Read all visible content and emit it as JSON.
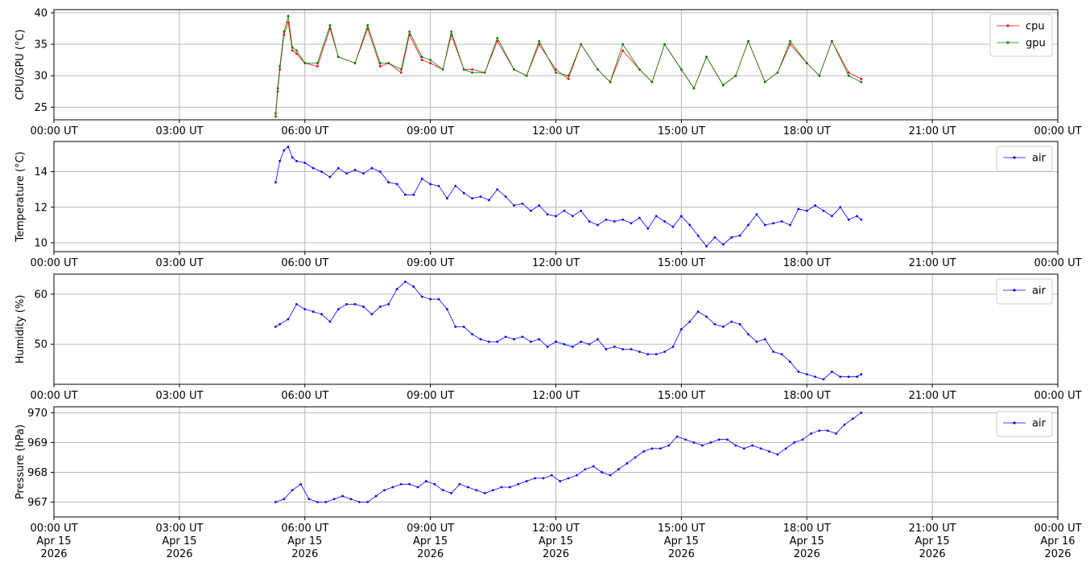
{
  "chart_data": [
    {
      "type": "line",
      "ylabel": "CPU/GPU (°C)",
      "xlim": [
        "00:00 UT",
        "00:00 UT"
      ],
      "ylim": [
        23,
        40.5
      ],
      "yticks": [
        "25",
        "30",
        "35",
        "40"
      ],
      "xticks": [
        "00:00 UT",
        "03:00 UT",
        "06:00 UT",
        "09:00 UT",
        "12:00 UT",
        "15:00 UT",
        "18:00 UT",
        "21:00 UT",
        "00:00 UT"
      ],
      "grid": true,
      "legend_position": "upper right",
      "series": [
        {
          "name": "cpu",
          "color": "#ff0000",
          "x_hours": [
            5.3,
            5.35,
            5.4,
            5.5,
            5.6,
            5.7,
            5.8,
            6.0,
            6.3,
            6.6,
            6.8,
            7.2,
            7.5,
            7.8,
            8.0,
            8.3,
            8.5,
            8.8,
            9.0,
            9.3,
            9.5,
            9.8,
            10.0,
            10.3,
            10.6,
            11.0,
            11.3,
            11.6,
            12.0,
            12.3,
            12.6,
            13.0,
            13.3,
            13.6,
            14.0,
            14.3,
            14.6,
            15.0,
            15.3,
            15.6,
            16.0,
            16.3,
            16.6,
            17.0,
            17.3,
            17.6,
            18.0,
            18.3,
            18.6,
            19.0,
            19.3
          ],
          "values": [
            23.5,
            27.5,
            31,
            36.5,
            38.5,
            34,
            33.5,
            32,
            31.5,
            37.5,
            33,
            32,
            37.5,
            31.5,
            32,
            30.5,
            36.5,
            32.5,
            32,
            31,
            36.5,
            31,
            31,
            30.5,
            35.5,
            31,
            30,
            35,
            31,
            29.5,
            35,
            31,
            29,
            34,
            31,
            29,
            35,
            31,
            28,
            33,
            28.5,
            30,
            35.5,
            29,
            30.5,
            35,
            32,
            30,
            35.5,
            30.5,
            29.5
          ]
        },
        {
          "name": "gpu",
          "color": "#008000",
          "x_hours": [
            5.3,
            5.35,
            5.4,
            5.5,
            5.6,
            5.7,
            5.8,
            6.0,
            6.3,
            6.6,
            6.8,
            7.2,
            7.5,
            7.8,
            8.0,
            8.3,
            8.5,
            8.8,
            9.0,
            9.3,
            9.5,
            9.8,
            10.0,
            10.3,
            10.6,
            11.0,
            11.3,
            11.6,
            12.0,
            12.3,
            12.6,
            13.0,
            13.3,
            13.6,
            14.0,
            14.3,
            14.6,
            15.0,
            15.3,
            15.6,
            16.0,
            16.3,
            16.6,
            17.0,
            17.3,
            17.6,
            18.0,
            18.3,
            18.6,
            19.0,
            19.3
          ],
          "values": [
            24,
            28,
            31.5,
            37,
            39.5,
            34.5,
            34,
            32,
            32,
            38,
            33,
            32,
            38,
            32,
            32,
            31,
            37,
            33,
            32.5,
            31,
            37,
            31,
            30.5,
            30.5,
            36,
            31,
            30,
            35.5,
            30.5,
            30,
            35,
            31,
            29,
            35,
            31,
            29,
            35,
            31,
            28,
            33,
            28.5,
            30,
            35.5,
            29,
            30.5,
            35.5,
            32,
            30,
            35.5,
            30,
            29
          ]
        }
      ]
    },
    {
      "type": "line",
      "ylabel": "Temperature (°C)",
      "xlim": [
        "00:00 UT",
        "00:00 UT"
      ],
      "ylim": [
        9.5,
        15.7
      ],
      "yticks": [
        "10",
        "12",
        "14"
      ],
      "xticks": [
        "00:00 UT",
        "03:00 UT",
        "06:00 UT",
        "09:00 UT",
        "12:00 UT",
        "15:00 UT",
        "18:00 UT",
        "21:00 UT",
        "00:00 UT"
      ],
      "grid": true,
      "legend_position": "upper right",
      "series": [
        {
          "name": "air",
          "color": "#0000ff",
          "x_hours": [
            5.3,
            5.4,
            5.5,
            5.6,
            5.7,
            5.8,
            6.0,
            6.2,
            6.4,
            6.6,
            6.8,
            7.0,
            7.2,
            7.4,
            7.6,
            7.8,
            8.0,
            8.2,
            8.4,
            8.6,
            8.8,
            9.0,
            9.2,
            9.4,
            9.6,
            9.8,
            10.0,
            10.2,
            10.4,
            10.6,
            10.8,
            11.0,
            11.2,
            11.4,
            11.6,
            11.8,
            12.0,
            12.2,
            12.4,
            12.6,
            12.8,
            13.0,
            13.2,
            13.4,
            13.6,
            13.8,
            14.0,
            14.2,
            14.4,
            14.6,
            14.8,
            15.0,
            15.2,
            15.4,
            15.6,
            15.8,
            16.0,
            16.2,
            16.4,
            16.6,
            16.8,
            17.0,
            17.2,
            17.4,
            17.6,
            17.8,
            18.0,
            18.2,
            18.4,
            18.6,
            18.8,
            19.0,
            19.2,
            19.3
          ],
          "values": [
            13.4,
            14.6,
            15.2,
            15.4,
            14.8,
            14.6,
            14.5,
            14.2,
            14.0,
            13.7,
            14.2,
            13.9,
            14.1,
            13.9,
            14.2,
            14.0,
            13.4,
            13.3,
            12.7,
            12.7,
            13.6,
            13.3,
            13.2,
            12.5,
            13.2,
            12.8,
            12.5,
            12.6,
            12.4,
            13.0,
            12.6,
            12.1,
            12.2,
            11.8,
            12.1,
            11.6,
            11.5,
            11.8,
            11.5,
            11.8,
            11.2,
            11.0,
            11.3,
            11.2,
            11.3,
            11.1,
            11.4,
            10.8,
            11.5,
            11.2,
            10.9,
            11.5,
            11.0,
            10.4,
            9.8,
            10.3,
            9.9,
            10.3,
            10.4,
            11.0,
            11.6,
            11.0,
            11.1,
            11.2,
            11.0,
            11.9,
            11.8,
            12.1,
            11.8,
            11.5,
            12.0,
            11.3,
            11.5,
            11.3
          ]
        }
      ]
    },
    {
      "type": "line",
      "ylabel": "Humidity (%)",
      "xlim": [
        "00:00 UT",
        "00:00 UT"
      ],
      "ylim": [
        42,
        64
      ],
      "yticks": [
        "50",
        "60"
      ],
      "xticks": [
        "00:00 UT",
        "03:00 UT",
        "06:00 UT",
        "09:00 UT",
        "12:00 UT",
        "15:00 UT",
        "18:00 UT",
        "21:00 UT",
        "00:00 UT"
      ],
      "grid": true,
      "legend_position": "upper right",
      "series": [
        {
          "name": "air",
          "color": "#0000ff",
          "x_hours": [
            5.3,
            5.4,
            5.6,
            5.8,
            6.0,
            6.2,
            6.4,
            6.6,
            6.8,
            7.0,
            7.2,
            7.4,
            7.6,
            7.8,
            8.0,
            8.2,
            8.4,
            8.6,
            8.8,
            9.0,
            9.2,
            9.4,
            9.6,
            9.8,
            10.0,
            10.2,
            10.4,
            10.6,
            10.8,
            11.0,
            11.2,
            11.4,
            11.6,
            11.8,
            12.0,
            12.2,
            12.4,
            12.6,
            12.8,
            13.0,
            13.2,
            13.4,
            13.6,
            13.8,
            14.0,
            14.2,
            14.4,
            14.6,
            14.8,
            15.0,
            15.2,
            15.4,
            15.6,
            15.8,
            16.0,
            16.2,
            16.4,
            16.6,
            16.8,
            17.0,
            17.2,
            17.4,
            17.6,
            17.8,
            18.0,
            18.2,
            18.4,
            18.6,
            18.8,
            19.0,
            19.2,
            19.3
          ],
          "values": [
            53.5,
            54.0,
            55.0,
            58.0,
            57.0,
            56.5,
            56.0,
            54.5,
            57.0,
            58.0,
            58.0,
            57.5,
            56.0,
            57.5,
            58.0,
            61.0,
            62.5,
            61.5,
            59.5,
            59.0,
            59.0,
            57.0,
            53.5,
            53.5,
            52.0,
            51.0,
            50.5,
            50.5,
            51.5,
            51.0,
            51.5,
            50.5,
            51.0,
            49.5,
            50.5,
            50.0,
            49.5,
            50.5,
            50.0,
            51.0,
            49.0,
            49.5,
            49.0,
            49.0,
            48.5,
            48.0,
            48.0,
            48.5,
            49.5,
            53.0,
            54.5,
            56.5,
            55.5,
            54.0,
            53.5,
            54.5,
            54.0,
            52.0,
            50.5,
            51.0,
            48.5,
            48.0,
            46.5,
            44.5,
            44.0,
            43.5,
            43.0,
            44.5,
            43.5,
            43.5,
            43.5,
            44.0
          ]
        }
      ]
    },
    {
      "type": "line",
      "ylabel": "Pressure (hPa)",
      "xlim": [
        "00:00 UT",
        "00:00 UT"
      ],
      "ylim": [
        966.5,
        970.2
      ],
      "yticks": [
        "967",
        "968",
        "969",
        "970"
      ],
      "xticks": [
        "00:00 UT",
        "03:00 UT",
        "06:00 UT",
        "09:00 UT",
        "12:00 UT",
        "15:00 UT",
        "18:00 UT",
        "21:00 UT",
        "00:00 UT"
      ],
      "xticks_date": [
        "Apr 15",
        "Apr 15",
        "Apr 15",
        "Apr 15",
        "Apr 15",
        "Apr 15",
        "Apr 15",
        "Apr 15",
        "Apr 16"
      ],
      "xticks_year": [
        "2026",
        "2026",
        "2026",
        "2026",
        "2026",
        "2026",
        "2026",
        "2026",
        "2026"
      ],
      "grid": true,
      "legend_position": "upper right",
      "series": [
        {
          "name": "air",
          "color": "#0000ff",
          "x_hours": [
            5.3,
            5.5,
            5.7,
            5.9,
            6.1,
            6.3,
            6.5,
            6.7,
            6.9,
            7.1,
            7.3,
            7.5,
            7.7,
            7.9,
            8.1,
            8.3,
            8.5,
            8.7,
            8.9,
            9.1,
            9.3,
            9.5,
            9.7,
            9.9,
            10.1,
            10.3,
            10.5,
            10.7,
            10.9,
            11.1,
            11.3,
            11.5,
            11.7,
            11.9,
            12.1,
            12.3,
            12.5,
            12.7,
            12.9,
            13.1,
            13.3,
            13.5,
            13.7,
            13.9,
            14.1,
            14.3,
            14.5,
            14.7,
            14.9,
            15.1,
            15.3,
            15.5,
            15.7,
            15.9,
            16.1,
            16.3,
            16.5,
            16.7,
            16.9,
            17.1,
            17.3,
            17.5,
            17.7,
            17.9,
            18.1,
            18.3,
            18.5,
            18.7,
            18.9,
            19.1,
            19.3
          ],
          "values": [
            967.0,
            967.1,
            967.4,
            967.6,
            967.1,
            967.0,
            967.0,
            967.1,
            967.2,
            967.1,
            967.0,
            967.0,
            967.2,
            967.4,
            967.5,
            967.6,
            967.6,
            967.5,
            967.7,
            967.6,
            967.4,
            967.3,
            967.6,
            967.5,
            967.4,
            967.3,
            967.4,
            967.5,
            967.5,
            967.6,
            967.7,
            967.8,
            967.8,
            967.9,
            967.7,
            967.8,
            967.9,
            968.1,
            968.2,
            968.0,
            967.9,
            968.1,
            968.3,
            968.5,
            968.7,
            968.8,
            968.8,
            968.9,
            969.2,
            969.1,
            969.0,
            968.9,
            969.0,
            969.1,
            969.1,
            968.9,
            968.8,
            968.9,
            968.8,
            968.7,
            968.6,
            968.8,
            969.0,
            969.1,
            969.3,
            969.4,
            969.4,
            969.3,
            969.6,
            969.8,
            970.0
          ]
        }
      ]
    }
  ]
}
